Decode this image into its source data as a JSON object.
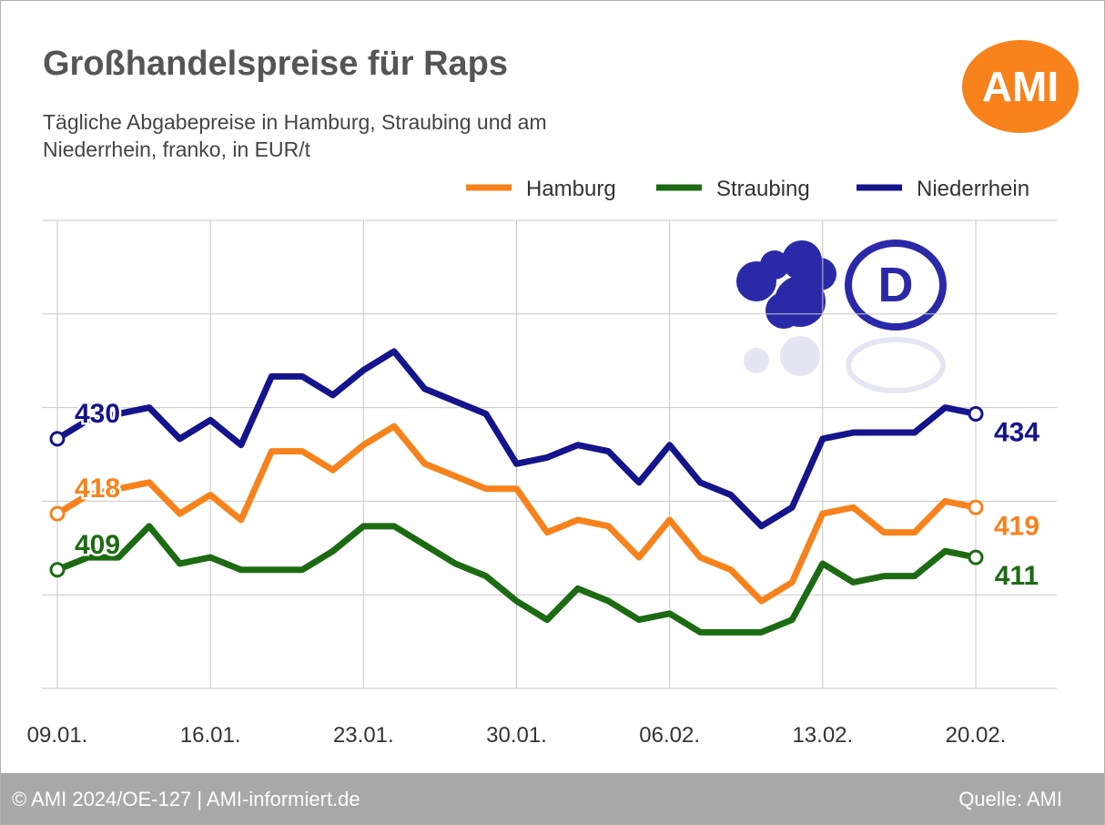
{
  "logo": "AMI",
  "badge": "D",
  "footer": {
    "left": "© AMI 2024/OE-127 | AMI-informiert.de",
    "right": "Quelle: AMI"
  },
  "chart_data": {
    "type": "line",
    "title": "Großhandelspreise für Raps",
    "subtitle": "Tägliche Abgabepreise in Hamburg, Straubing und am Niederrhein, franko, in EUR/t",
    "categories": [
      "09.01.",
      null,
      null,
      null,
      null,
      "16.01.",
      null,
      null,
      null,
      null,
      "23.01.",
      null,
      null,
      null,
      null,
      "30.01.",
      null,
      null,
      null,
      null,
      "06.02.",
      null,
      null,
      null,
      null,
      "13.02.",
      null,
      null,
      null,
      null,
      "20.02."
    ],
    "series": [
      {
        "name": "Hamburg",
        "color": "#f7821b",
        "values": [
          418,
          421,
          422,
          423,
          418,
          421,
          417,
          428,
          428,
          425,
          429,
          432,
          426,
          424,
          422,
          422,
          415,
          417,
          416,
          411,
          417,
          411,
          409,
          404,
          407,
          418,
          419,
          415,
          415,
          420,
          419
        ]
      },
      {
        "name": "Straubing",
        "color": "#1c6b12",
        "values": [
          409,
          411,
          411,
          416,
          410,
          411,
          409,
          409,
          409,
          412,
          416,
          416,
          413,
          410,
          408,
          404,
          401,
          406,
          404,
          401,
          402,
          399,
          399,
          399,
          401,
          410,
          407,
          408,
          408,
          412,
          411
        ]
      },
      {
        "name": "Niederrhein",
        "color": "#14148c",
        "values": [
          430,
          433,
          434,
          435,
          430,
          433,
          429,
          440,
          440,
          437,
          441,
          444,
          438,
          436,
          434,
          426,
          427,
          429,
          428,
          423,
          429,
          423,
          421,
          416,
          419,
          430,
          431,
          431,
          431,
          435,
          434
        ]
      }
    ],
    "ylim": [
      390,
      465
    ],
    "yticks": [
      390,
      405,
      420,
      435,
      450,
      465
    ],
    "grid": true
  }
}
